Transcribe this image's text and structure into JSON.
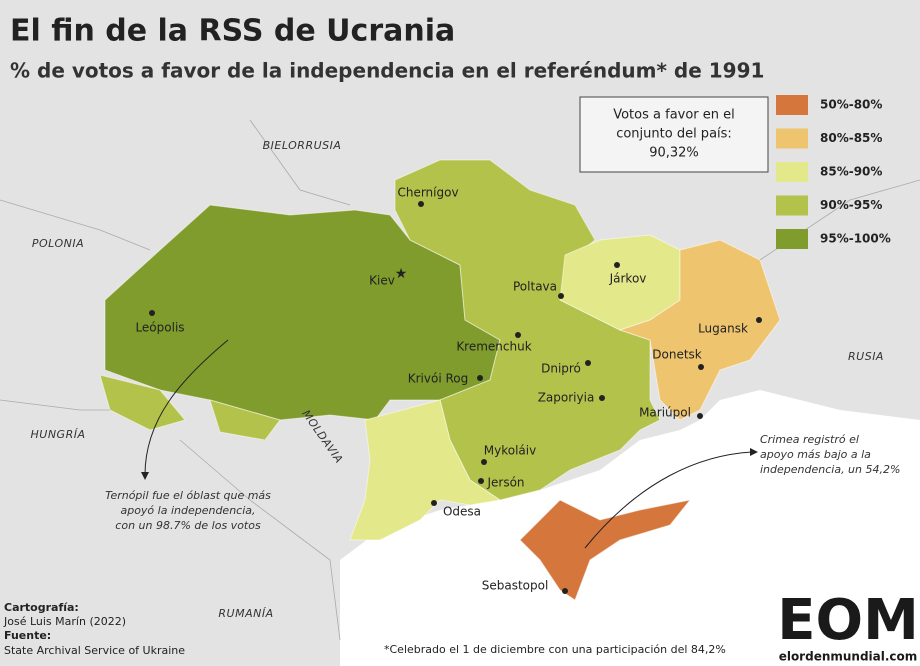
{
  "header": {
    "title": "El fin de la RSS de Ucrania",
    "subtitle": "% de votos a favor de la independencia en el referéndum* de 1991"
  },
  "summary_box": {
    "lines": [
      "Votos a favor en el",
      "conjunto del país:",
      "90,32%"
    ]
  },
  "legend": [
    {
      "label": "50%-80%",
      "color": "#d5773c"
    },
    {
      "label": "80%-85%",
      "color": "#efc46e"
    },
    {
      "label": "85%-90%",
      "color": "#e3e88a"
    },
    {
      "label": "90%-95%",
      "color": "#b3c24a"
    },
    {
      "label": "95%-100%",
      "color": "#7f9c2c"
    }
  ],
  "countries": [
    "BIELORRUSIA",
    "POLONIA",
    "HUNGRÍA",
    "MOLDAVIA",
    "RUMANÍA",
    "RUSIA"
  ],
  "cities": [
    "Chernígov",
    "Kiev",
    "Járkov",
    "Poltava",
    "Leópolis",
    "Lugansk",
    "Kremenchuk",
    "Donetsk",
    "Dnipró",
    "Krivói Rog",
    "Zaporiyia",
    "Mariúpol",
    "Mykoláiv",
    "Jersón",
    "Odesa",
    "Sebastopol"
  ],
  "annotations": {
    "ternopil": [
      "Ternópil fue el óblast que más",
      "apoyó la independencia,",
      "con un 98.7% de los votos"
    ],
    "crimea": [
      "Crimea registró el",
      "apoyo más bajo a la",
      "independencia, un 54,2%"
    ]
  },
  "credits": {
    "cartography_label": "Cartografía:",
    "cartography": "José Luis Marín (2022)",
    "source_label": "Fuente:",
    "source": "State Archival Service of Ukraine"
  },
  "footnote": "*Celebrado el 1 de diciembre con una participación del 84,2%",
  "logo": {
    "mark": "EOM",
    "site": "elordenmundial.com"
  }
}
